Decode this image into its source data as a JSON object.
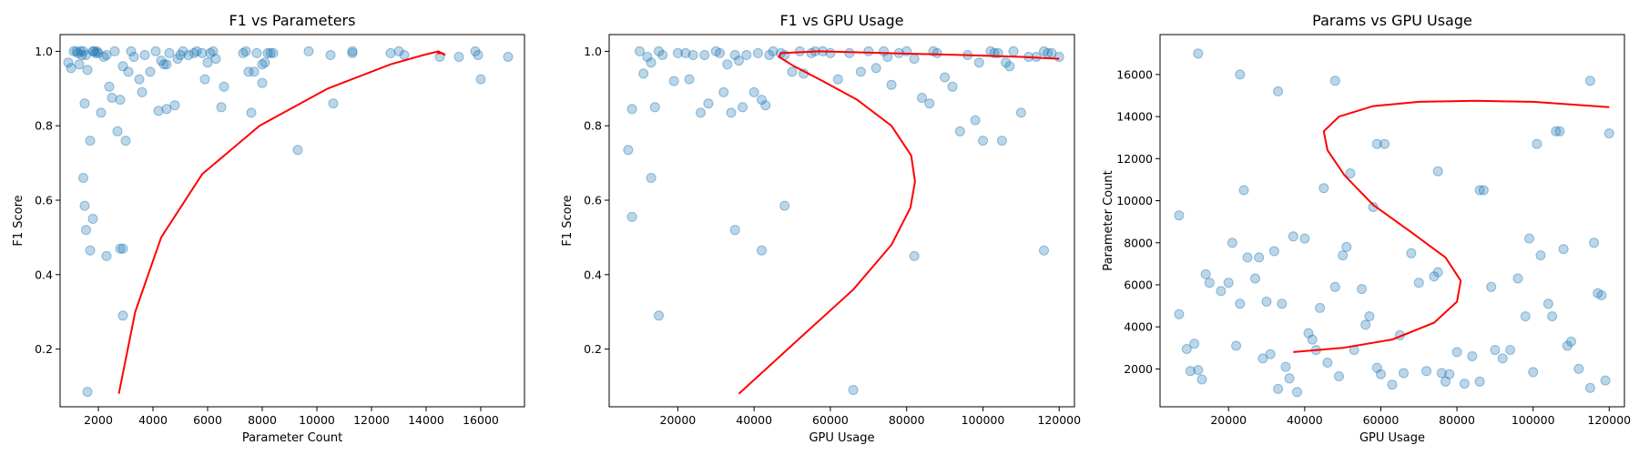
{
  "chart_data": [
    {
      "type": "scatter",
      "title": "F1 vs Parameters",
      "xlabel": "Parameter Count",
      "ylabel": "F1 Score",
      "xlim": [
        600,
        17600
      ],
      "ylim": [
        0.045,
        1.045
      ],
      "xticks": [
        2000,
        4000,
        6000,
        8000,
        10000,
        12000,
        14000,
        16000
      ],
      "yticks": [
        0.2,
        0.4,
        0.6,
        0.8,
        1.0
      ],
      "grid": false,
      "series": [
        {
          "kind": "points",
          "x": [
            900,
            1000,
            1100,
            1200,
            1250,
            1300,
            1350,
            1400,
            1450,
            1500,
            1550,
            1600,
            1700,
            1800,
            1850,
            1900,
            1950,
            2000,
            2100,
            2200,
            2300,
            2400,
            2500,
            2600,
            2700,
            2800,
            2900,
            3000,
            3100,
            3200,
            3300,
            3500,
            3600,
            3700,
            3900,
            4100,
            4200,
            4300,
            4400,
            4500,
            4600,
            4800,
            4900,
            5000,
            5100,
            5300,
            5500,
            5600,
            5800,
            5900,
            6000,
            6100,
            6200,
            6300,
            6500,
            6600,
            7300,
            7400,
            7500,
            7600,
            7700,
            7800,
            8000,
            8100,
            8200,
            8300,
            8400,
            9300,
            9700,
            10500,
            10600,
            11300,
            11300,
            12700,
            13000,
            13200,
            14500,
            15200,
            15800,
            15900,
            16000,
            17000,
            1450,
            1500,
            1550,
            1600,
            1700,
            1800,
            2300,
            2800,
            2900,
            2900,
            4500,
            8000
          ],
          "y": [
            0.97,
            0.955,
            1.0,
            1.0,
            0.995,
            0.965,
            1.0,
            0.99,
            1.0,
            0.86,
            0.99,
            0.95,
            0.76,
            1.0,
            1.0,
            0.995,
            1.0,
            0.995,
            0.835,
            0.985,
            0.99,
            0.905,
            0.875,
            1.0,
            0.785,
            0.87,
            0.96,
            0.76,
            0.945,
            1.0,
            0.985,
            0.925,
            0.89,
            0.99,
            0.945,
            1.0,
            0.84,
            0.975,
            0.965,
            0.845,
            0.995,
            0.855,
            0.98,
            0.99,
            1.0,
            0.99,
            0.995,
            1.0,
            0.995,
            0.925,
            0.97,
            0.995,
            1.0,
            0.98,
            0.85,
            0.905,
            0.995,
            1.0,
            0.945,
            0.835,
            0.945,
            0.995,
            0.915,
            0.97,
            0.995,
            0.995,
            0.995,
            0.735,
            1.0,
            0.99,
            0.86,
            0.995,
            1.0,
            0.995,
            1.0,
            0.99,
            0.985,
            0.985,
            1.0,
            0.99,
            0.925,
            0.985,
            0.66,
            0.585,
            0.52,
            0.085,
            0.465,
            0.55,
            0.45,
            0.47,
            0.29,
            0.47,
            0.965,
            0.965
          ]
        },
        {
          "kind": "curve",
          "x": [
            2750,
            3350,
            4300,
            5800,
            7900,
            10400,
            12700,
            13900,
            14450,
            14700,
            14600,
            14400
          ],
          "y": [
            0.08,
            0.3,
            0.5,
            0.67,
            0.8,
            0.9,
            0.965,
            0.99,
            1.0,
            0.99,
            0.995,
            0.995
          ]
        }
      ]
    },
    {
      "type": "scatter",
      "title": "F1 vs GPU Usage",
      "xlabel": "GPU Usage",
      "ylabel": "F1 Score",
      "xlim": [
        2000,
        124000
      ],
      "ylim": [
        0.045,
        1.045
      ],
      "xticks": [
        20000,
        40000,
        60000,
        80000,
        100000,
        120000
      ],
      "yticks": [
        0.2,
        0.4,
        0.6,
        0.8,
        1.0
      ],
      "grid": false,
      "series": [
        {
          "kind": "points",
          "x": [
            7000,
            8000,
            10000,
            11000,
            12000,
            13000,
            14000,
            15000,
            16000,
            19000,
            20000,
            22000,
            23000,
            24000,
            26000,
            27000,
            28000,
            30000,
            31000,
            32000,
            33000,
            34000,
            35000,
            36000,
            37000,
            38000,
            40000,
            41000,
            42000,
            43000,
            44000,
            45000,
            47000,
            48000,
            50000,
            52000,
            53000,
            55000,
            56000,
            58000,
            60000,
            62000,
            65000,
            68000,
            70000,
            72000,
            74000,
            75000,
            76000,
            78000,
            80000,
            82000,
            84000,
            86000,
            87000,
            88000,
            90000,
            92000,
            94000,
            96000,
            98000,
            99000,
            100000,
            102000,
            103000,
            104000,
            105000,
            106000,
            107000,
            108000,
            110000,
            112000,
            114000,
            116000,
            117000,
            118000,
            120000,
            15000,
            13000,
            8000,
            35000,
            48000,
            42000,
            66000,
            82000,
            116000
          ],
          "y": [
            0.735,
            0.845,
            1.0,
            0.94,
            0.985,
            0.97,
            0.85,
            1.0,
            0.99,
            0.92,
            0.995,
            0.995,
            0.925,
            0.99,
            0.835,
            0.99,
            0.86,
            1.0,
            0.995,
            0.89,
            0.965,
            0.835,
            0.99,
            0.975,
            0.85,
            0.99,
            0.89,
            0.995,
            0.87,
            0.855,
            0.99,
            1.0,
            0.995,
            0.99,
            0.945,
            1.0,
            0.94,
            0.995,
            1.0,
            1.0,
            0.995,
            0.925,
            0.995,
            0.945,
            1.0,
            0.955,
            1.0,
            0.985,
            0.91,
            0.995,
            1.0,
            0.98,
            0.875,
            0.86,
            1.0,
            0.995,
            0.93,
            0.905,
            0.785,
            0.99,
            0.815,
            0.97,
            0.76,
            1.0,
            0.995,
            0.995,
            0.76,
            0.97,
            0.96,
            1.0,
            0.835,
            0.985,
            0.985,
            1.0,
            0.995,
            0.995,
            0.985,
            0.29,
            0.66,
            0.555,
            0.52,
            0.585,
            0.465,
            0.09,
            0.45,
            0.465
          ]
        },
        {
          "kind": "curve",
          "x": [
            36000,
            51000,
            66000,
            76000,
            81000,
            82200,
            81200,
            76000,
            67000,
            58000,
            50500,
            46500,
            47000,
            57000,
            75000,
            95000,
            110000,
            120000
          ],
          "y": [
            0.08,
            0.22,
            0.36,
            0.48,
            0.58,
            0.65,
            0.72,
            0.8,
            0.87,
            0.92,
            0.96,
            0.985,
            0.995,
            1.0,
            0.995,
            0.99,
            0.985,
            0.98
          ]
        }
      ]
    },
    {
      "type": "scatter",
      "title": "Params vs GPU Usage",
      "xlabel": "GPU Usage",
      "ylabel": "Parameter Count",
      "xlim": [
        2000,
        124000
      ],
      "ylim": [
        200,
        17900
      ],
      "xticks": [
        20000,
        40000,
        60000,
        80000,
        100000,
        120000
      ],
      "yticks": [
        2000,
        4000,
        6000,
        8000,
        10000,
        12000,
        14000,
        16000
      ],
      "grid": false,
      "series": [
        {
          "kind": "points",
          "x": [
            7000,
            7000,
            9000,
            10000,
            11000,
            12000,
            13000,
            14000,
            15000,
            18000,
            20000,
            21000,
            22000,
            23000,
            24000,
            25000,
            27000,
            28000,
            29000,
            30000,
            31000,
            32000,
            33000,
            34000,
            35000,
            36000,
            37000,
            38000,
            40000,
            41000,
            42000,
            43000,
            44000,
            45000,
            46000,
            48000,
            49000,
            50000,
            51000,
            52000,
            53000,
            55000,
            56000,
            57000,
            58000,
            59000,
            60000,
            61000,
            63000,
            65000,
            66000,
            68000,
            70000,
            72000,
            74000,
            75000,
            76000,
            77000,
            78000,
            80000,
            82000,
            84000,
            86000,
            87000,
            89000,
            90000,
            92000,
            94000,
            96000,
            98000,
            99000,
            100000,
            101000,
            102000,
            104000,
            105000,
            106000,
            108000,
            109000,
            110000,
            112000,
            115000,
            116000,
            117000,
            118000,
            119000,
            120000,
            12000,
            23000,
            33000,
            48000,
            59000,
            75000,
            86000,
            107000,
            115000
          ],
          "y": [
            9300,
            4600,
            2950,
            1900,
            3200,
            1950,
            1500,
            6500,
            6100,
            5700,
            6100,
            8000,
            3100,
            5100,
            10500,
            7300,
            6300,
            7300,
            2500,
            5200,
            2700,
            7600,
            1050,
            5100,
            2100,
            1550,
            8300,
            900,
            8200,
            3700,
            3400,
            2900,
            4900,
            10600,
            2300,
            5900,
            1650,
            7400,
            7800,
            11300,
            2900,
            5800,
            4100,
            4500,
            9700,
            2050,
            1750,
            12700,
            1250,
            3600,
            1800,
            7500,
            6100,
            1900,
            6400,
            11400,
            1800,
            1400,
            1750,
            2800,
            1300,
            2600,
            1400,
            10500,
            5900,
            2900,
            2500,
            2900,
            6300,
            4500,
            8200,
            1850,
            12700,
            7400,
            5100,
            4500,
            13300,
            7700,
            3100,
            3300,
            2000,
            1100,
            8000,
            5600,
            5500,
            1450,
            13200,
            17000,
            16000,
            15200,
            15700,
            12700,
            6600,
            10500,
            13300,
            15700
          ]
        },
        {
          "kind": "curve",
          "x": [
            37000,
            50000,
            63000,
            74000,
            80000,
            81000,
            77000,
            68000,
            58000,
            50500,
            46000,
            45000,
            49000,
            58000,
            70000,
            85000,
            100000,
            120000
          ],
          "y": [
            2800,
            3000,
            3400,
            4200,
            5200,
            6200,
            7300,
            8500,
            9800,
            11200,
            12400,
            13300,
            14000,
            14500,
            14700,
            14750,
            14700,
            14450
          ]
        }
      ]
    }
  ]
}
